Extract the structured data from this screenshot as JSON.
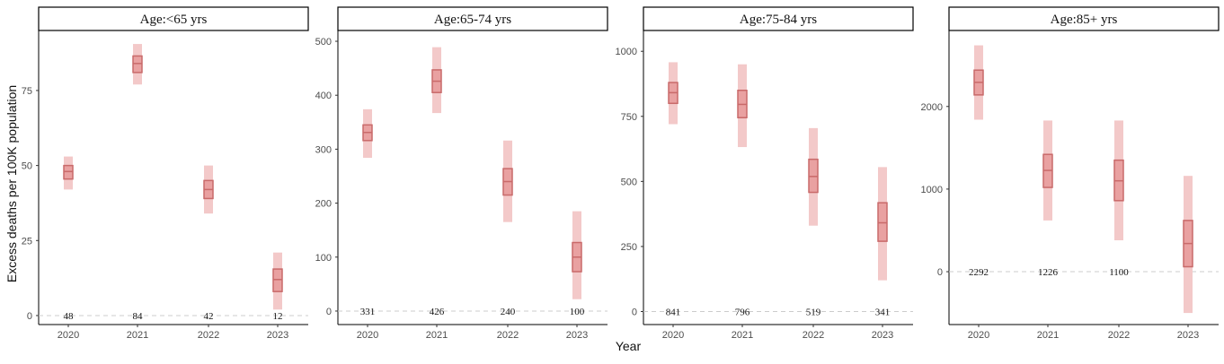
{
  "axes": {
    "x_title": "Year",
    "y_title": "Excess deaths per 100K population"
  },
  "colors": {
    "ci_outer": "#f3c9c9",
    "box_fill": "#e9a1a1",
    "box_stroke": "#c96a6a",
    "zero_line": "#cccccc",
    "frame": "#000000"
  },
  "chart_data": [
    {
      "type": "crossbar",
      "title": "Age:<65 yrs",
      "categories": [
        "2020",
        "2021",
        "2022",
        "2023"
      ],
      "ylim": [
        -3,
        95
      ],
      "yticks": [
        0,
        25,
        50,
        75
      ],
      "series": [
        {
          "median": [
            48,
            84,
            42,
            12
          ],
          "box_low": [
            45.5,
            81,
            39,
            8
          ],
          "box_high": [
            50,
            86.5,
            45,
            15.5
          ],
          "ci_low": [
            42,
            77,
            34,
            2
          ],
          "ci_high": [
            53,
            90.5,
            50,
            21
          ],
          "labels": [
            "48",
            "84",
            "42",
            "12"
          ]
        }
      ]
    },
    {
      "type": "crossbar",
      "title": "Age:65-74 yrs",
      "categories": [
        "2020",
        "2021",
        "2022",
        "2023"
      ],
      "ylim": [
        -25,
        520
      ],
      "yticks": [
        0,
        100,
        200,
        300,
        400,
        500
      ],
      "series": [
        {
          "median": [
            331,
            426,
            240,
            100
          ],
          "box_low": [
            316,
            405,
            215,
            73
          ],
          "box_high": [
            345,
            447,
            264,
            127
          ],
          "ci_low": [
            284,
            367,
            165,
            22
          ],
          "ci_high": [
            374,
            489,
            316,
            185
          ],
          "labels": [
            "331",
            "426",
            "240",
            "100"
          ]
        }
      ]
    },
    {
      "type": "crossbar",
      "title": "Age:75-84 yrs",
      "categories": [
        "2020",
        "2021",
        "2022",
        "2023"
      ],
      "ylim": [
        -50,
        1080
      ],
      "yticks": [
        0,
        250,
        500,
        750,
        1000
      ],
      "series": [
        {
          "median": [
            841,
            796,
            519,
            341
          ],
          "box_low": [
            800,
            745,
            458,
            270
          ],
          "box_high": [
            880,
            850,
            585,
            418
          ],
          "ci_low": [
            720,
            632,
            330,
            120
          ],
          "ci_high": [
            958,
            950,
            705,
            555
          ],
          "labels": [
            "841",
            "796",
            "519",
            "341"
          ]
        }
      ]
    },
    {
      "type": "crossbar",
      "title": "Age:85+ yrs",
      "categories": [
        "2020",
        "2021",
        "2022",
        "2023"
      ],
      "ylim": [
        -640,
        2920
      ],
      "yticks": [
        0,
        1000,
        2000
      ],
      "series": [
        {
          "median": [
            2292,
            1226,
            1100,
            341
          ],
          "box_low": [
            2140,
            1020,
            860,
            60
          ],
          "box_high": [
            2440,
            1420,
            1350,
            620
          ],
          "ci_low": [
            1840,
            620,
            380,
            -500
          ],
          "ci_high": [
            2740,
            1830,
            1830,
            1160
          ],
          "labels": [
            "2292",
            "1226",
            "1100",
            ""
          ]
        }
      ]
    }
  ]
}
